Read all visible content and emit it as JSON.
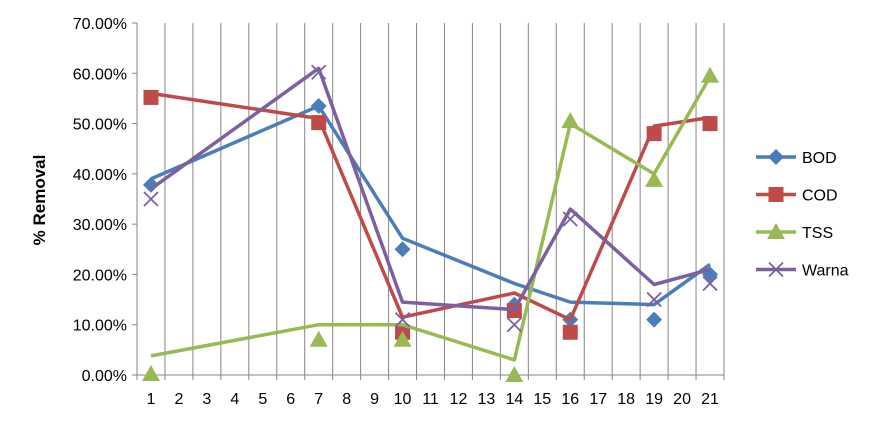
{
  "chart_data": {
    "type": "line",
    "ylabel": "% Removal",
    "xlabel": "",
    "title": "",
    "x_ticks": [
      "1",
      "2",
      "3",
      "4",
      "5",
      "6",
      "7",
      "8",
      "9",
      "10",
      "11",
      "12",
      "13",
      "14",
      "15",
      "16",
      "17",
      "18",
      "19",
      "20",
      "21"
    ],
    "y_ticks": [
      "0.00%",
      "10.00%",
      "20.00%",
      "30.00%",
      "40.00%",
      "50.00%",
      "60.00%",
      "70.00%"
    ],
    "ylim": [
      0,
      70
    ],
    "grid": "vertical-lines-only",
    "legend_position": "right",
    "series": [
      {
        "name": "BOD",
        "color": "#4a7ebb",
        "marker": "diamond",
        "points": [
          [
            1,
            37.8
          ],
          [
            7,
            53.5
          ],
          [
            10,
            25.0
          ],
          [
            14,
            14.0
          ],
          [
            16,
            11.0
          ],
          [
            19,
            11.0
          ],
          [
            21,
            20.0
          ]
        ],
        "trend": [
          [
            1,
            39
          ],
          [
            7,
            53.5
          ],
          [
            10,
            27.2
          ],
          [
            14,
            18.2
          ],
          [
            16,
            14.5
          ],
          [
            19,
            14.0
          ],
          [
            21,
            22.0
          ]
        ]
      },
      {
        "name": "COD",
        "color": "#be4b48",
        "marker": "square",
        "points": [
          [
            1,
            55.2
          ],
          [
            7,
            50.2
          ],
          [
            10,
            8.5
          ],
          [
            14,
            12.8
          ],
          [
            16,
            8.5
          ],
          [
            19,
            48.0
          ],
          [
            21,
            50.0
          ]
        ],
        "trend": [
          [
            1,
            56
          ],
          [
            7,
            51.0
          ],
          [
            10,
            11.5
          ],
          [
            14,
            16.3
          ],
          [
            16,
            11.0
          ],
          [
            19,
            49.5
          ],
          [
            21,
            51.2
          ]
        ]
      },
      {
        "name": "TSS",
        "color": "#98b954",
        "marker": "triangle",
        "points": [
          [
            1,
            0.2
          ],
          [
            7,
            7.0
          ],
          [
            10,
            7.0
          ],
          [
            14,
            0.0
          ],
          [
            16,
            50.5
          ],
          [
            19,
            38.8
          ],
          [
            21,
            59.5
          ]
        ],
        "trend": [
          [
            1,
            3.8
          ],
          [
            7,
            10.0
          ],
          [
            10,
            10.0
          ],
          [
            14,
            3.0
          ],
          [
            16,
            50.0
          ],
          [
            19,
            40.0
          ],
          [
            21,
            59.3
          ]
        ]
      },
      {
        "name": "Warna",
        "color": "#7d60a0",
        "marker": "x",
        "points": [
          [
            1,
            35.0
          ],
          [
            7,
            60.2
          ],
          [
            10,
            11.0
          ],
          [
            14,
            10.0
          ],
          [
            16,
            31.0
          ],
          [
            19,
            15.0
          ],
          [
            21,
            18.2
          ]
        ],
        "trend": [
          [
            1,
            37.0
          ],
          [
            7,
            61.0
          ],
          [
            10,
            14.5
          ],
          [
            14,
            13.0
          ],
          [
            16,
            33.0
          ],
          [
            19,
            18.0
          ],
          [
            21,
            21.0
          ]
        ]
      }
    ]
  }
}
